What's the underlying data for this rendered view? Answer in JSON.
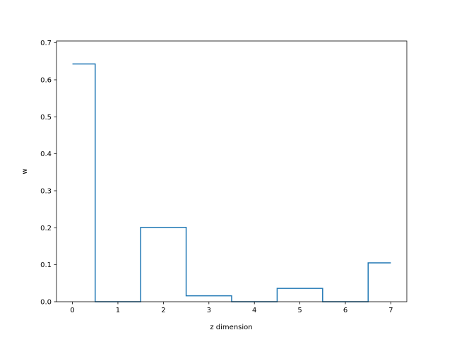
{
  "chart_data": {
    "type": "line",
    "drawstyle": "steps-mid",
    "xlabel": "z dimension",
    "ylabel": "w",
    "xlim": [
      -0.35,
      7.35
    ],
    "ylim": [
      0,
      0.705
    ],
    "x_ticks": [
      0,
      1,
      2,
      3,
      4,
      5,
      6,
      7
    ],
    "y_ticks": [
      0.0,
      0.1,
      0.2,
      0.3,
      0.4,
      0.5,
      0.6,
      0.7
    ],
    "x_tick_labels": [
      "0",
      "1",
      "2",
      "3",
      "4",
      "5",
      "6",
      "7"
    ],
    "y_tick_labels": [
      "0.0",
      "0.1",
      "0.2",
      "0.3",
      "0.4",
      "0.5",
      "0.6",
      "0.7"
    ],
    "grid": false,
    "series": [
      {
        "color": "#1f77b4",
        "x": [
          0,
          1,
          2,
          3,
          4,
          5,
          6,
          7
        ],
        "y": [
          0.643,
          0.0,
          0.201,
          0.016,
          0.0,
          0.036,
          0.0,
          0.105
        ]
      }
    ]
  }
}
